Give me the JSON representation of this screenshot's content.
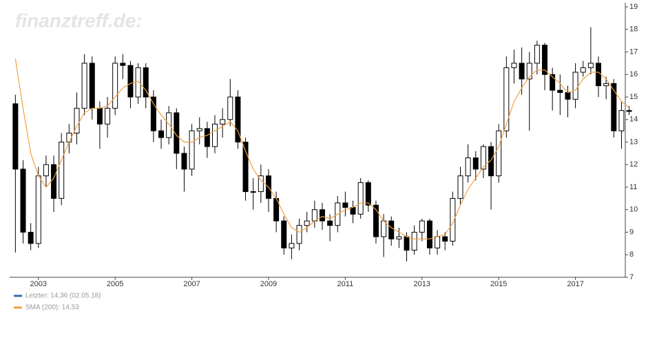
{
  "chart_data": {
    "type": "candlestick",
    "watermark": "finanztreff.de:",
    "x": [
      2002.4,
      2002.6,
      2002.8,
      2003.0,
      2003.2,
      2003.4,
      2003.6,
      2003.8,
      2004.0,
      2004.2,
      2004.4,
      2004.6,
      2004.8,
      2005.0,
      2005.2,
      2005.4,
      2005.6,
      2005.8,
      2006.0,
      2006.2,
      2006.4,
      2006.6,
      2006.8,
      2007.0,
      2007.2,
      2007.4,
      2007.6,
      2007.8,
      2008.0,
      2008.2,
      2008.4,
      2008.6,
      2008.8,
      2009.0,
      2009.2,
      2009.4,
      2009.6,
      2009.8,
      2010.0,
      2010.2,
      2010.4,
      2010.6,
      2010.8,
      2011.0,
      2011.2,
      2011.4,
      2011.6,
      2011.8,
      2012.0,
      2012.2,
      2012.4,
      2012.6,
      2012.8,
      2013.0,
      2013.2,
      2013.4,
      2013.6,
      2013.8,
      2014.0,
      2014.2,
      2014.4,
      2014.6,
      2014.8,
      2015.0,
      2015.2,
      2015.4,
      2015.6,
      2015.8,
      2016.0,
      2016.2,
      2016.4,
      2016.6,
      2016.8,
      2017.0,
      2017.2,
      2017.4,
      2017.6,
      2017.8,
      2018.0,
      2018.2,
      2018.4
    ],
    "open": [
      14.7,
      11.8,
      9.0,
      8.5,
      11.5,
      12.0,
      10.5,
      13.0,
      13.4,
      14.5,
      16.5,
      14.5,
      13.8,
      14.5,
      16.5,
      16.4,
      15.0,
      16.3,
      15.0,
      13.5,
      13.2,
      14.3,
      12.5,
      11.8,
      13.5,
      13.6,
      12.8,
      13.8,
      14.0,
      15.0,
      13.0,
      10.8,
      10.8,
      11.5,
      10.5,
      9.5,
      8.3,
      8.5,
      9.3,
      9.5,
      10.0,
      9.5,
      9.3,
      10.3,
      10.1,
      9.8,
      11.2,
      10.2,
      8.8,
      9.5,
      8.7,
      8.8,
      8.2,
      9.0,
      9.5,
      8.3,
      8.8,
      8.6,
      10.5,
      11.5,
      12.3,
      11.8,
      12.8,
      11.5,
      13.5,
      16.3,
      16.5,
      15.8,
      16.5,
      17.3,
      16.0,
      15.3,
      15.2,
      14.9,
      16.1,
      16.3,
      16.5,
      15.5,
      15.6,
      13.5,
      14.4
    ],
    "high": [
      15.1,
      12.2,
      9.4,
      11.9,
      12.4,
      12.4,
      13.4,
      13.8,
      15.2,
      16.9,
      16.8,
      14.8,
      15.0,
      16.8,
      16.9,
      16.6,
      16.5,
      16.5,
      15.3,
      14.0,
      14.6,
      14.5,
      12.8,
      13.8,
      14.1,
      13.9,
      14.2,
      14.5,
      15.8,
      15.3,
      13.2,
      11.4,
      12.0,
      11.8,
      10.8,
      9.7,
      8.9,
      9.6,
      9.9,
      10.4,
      10.3,
      9.8,
      10.6,
      10.8,
      10.4,
      11.4,
      11.3,
      10.4,
      9.8,
      9.7,
      9.2,
      9.0,
      9.3,
      9.6,
      9.6,
      9.1,
      9.0,
      10.8,
      11.9,
      12.9,
      12.6,
      12.9,
      13.0,
      13.8,
      16.8,
      17.1,
      17.2,
      17.0,
      17.5,
      17.4,
      16.3,
      16.0,
      15.5,
      16.5,
      16.6,
      18.1,
      16.8,
      15.9,
      15.8,
      14.8,
      14.6
    ],
    "low": [
      8.1,
      8.5,
      8.2,
      8.3,
      11.0,
      9.9,
      10.2,
      12.5,
      12.9,
      14.2,
      14.0,
      12.7,
      13.2,
      14.2,
      15.8,
      14.5,
      14.7,
      14.5,
      13.0,
      12.7,
      12.9,
      11.8,
      10.8,
      11.5,
      12.9,
      12.3,
      12.5,
      13.2,
      13.7,
      12.7,
      10.4,
      10.0,
      10.3,
      9.9,
      9.0,
      8.0,
      7.8,
      8.2,
      9.0,
      9.2,
      9.1,
      8.6,
      9.0,
      9.7,
      9.4,
      9.6,
      9.9,
      8.5,
      7.9,
      8.4,
      8.3,
      7.7,
      8.0,
      8.6,
      8.0,
      8.0,
      8.2,
      8.4,
      10.2,
      11.2,
      11.3,
      11.4,
      10.0,
      11.2,
      13.2,
      15.6,
      15.1,
      13.5,
      16.0,
      15.3,
      14.4,
      14.2,
      14.1,
      14.5,
      15.9,
      16.0,
      15.0,
      14.9,
      13.2,
      12.7,
      14.2
    ],
    "close": [
      11.8,
      9.0,
      8.5,
      11.5,
      12.0,
      10.5,
      13.0,
      13.4,
      14.5,
      16.5,
      14.5,
      13.8,
      14.5,
      16.5,
      16.4,
      15.0,
      16.3,
      15.0,
      13.5,
      13.2,
      14.3,
      12.5,
      11.8,
      13.5,
      13.6,
      12.8,
      13.8,
      14.0,
      15.0,
      13.0,
      10.8,
      10.8,
      11.5,
      10.5,
      9.5,
      8.3,
      8.5,
      9.3,
      9.5,
      10.0,
      9.5,
      9.3,
      10.3,
      10.1,
      9.8,
      11.2,
      10.2,
      8.8,
      9.5,
      8.7,
      8.8,
      8.2,
      9.0,
      9.5,
      8.3,
      8.8,
      8.6,
      10.5,
      11.5,
      12.3,
      11.8,
      12.8,
      11.5,
      13.5,
      16.3,
      16.5,
      15.8,
      16.5,
      17.3,
      16.0,
      15.3,
      15.2,
      14.9,
      16.1,
      16.3,
      16.5,
      15.5,
      15.6,
      13.5,
      14.4,
      14.36
    ],
    "up_color": "#ffffff",
    "down_color": "#000000",
    "candle_stroke": "#000000",
    "series": [
      {
        "name": "Letzter: 14,36 (02.05.18)",
        "color": "#2f6fb5"
      },
      {
        "name": "SMA (200): 14,53",
        "color": "#f0a040",
        "values": [
          16.7,
          14.5,
          12.5,
          11.5,
          11.0,
          11.4,
          12.2,
          13.0,
          13.7,
          14.3,
          14.5,
          14.5,
          14.6,
          15.0,
          15.4,
          15.6,
          15.7,
          15.3,
          14.7,
          14.2,
          13.8,
          13.3,
          13.0,
          13.0,
          13.2,
          13.3,
          13.5,
          13.7,
          13.9,
          13.5,
          12.6,
          11.8,
          11.3,
          11.0,
          10.5,
          9.8,
          9.2,
          9.0,
          9.2,
          9.5,
          9.7,
          9.6,
          9.8,
          10.0,
          10.1,
          10.3,
          10.3,
          10.0,
          9.5,
          9.2,
          9.0,
          8.8,
          8.7,
          8.7,
          8.7,
          8.8,
          8.9,
          9.4,
          10.2,
          10.9,
          11.4,
          11.9,
          12.2,
          12.8,
          13.8,
          14.8,
          15.4,
          15.9,
          16.2,
          16.2,
          15.9,
          15.6,
          15.2,
          15.3,
          15.8,
          16.1,
          16.1,
          15.8,
          15.3,
          14.8,
          14.53
        ]
      }
    ],
    "xlim": [
      2002.25,
      2018.3
    ],
    "ylim": [
      7,
      19
    ],
    "xticks": [
      2003,
      2005,
      2007,
      2009,
      2011,
      2013,
      2015,
      2017
    ],
    "yticks": [
      7,
      8,
      9,
      10,
      11,
      12,
      13,
      14,
      15,
      16,
      17,
      18,
      19
    ]
  }
}
